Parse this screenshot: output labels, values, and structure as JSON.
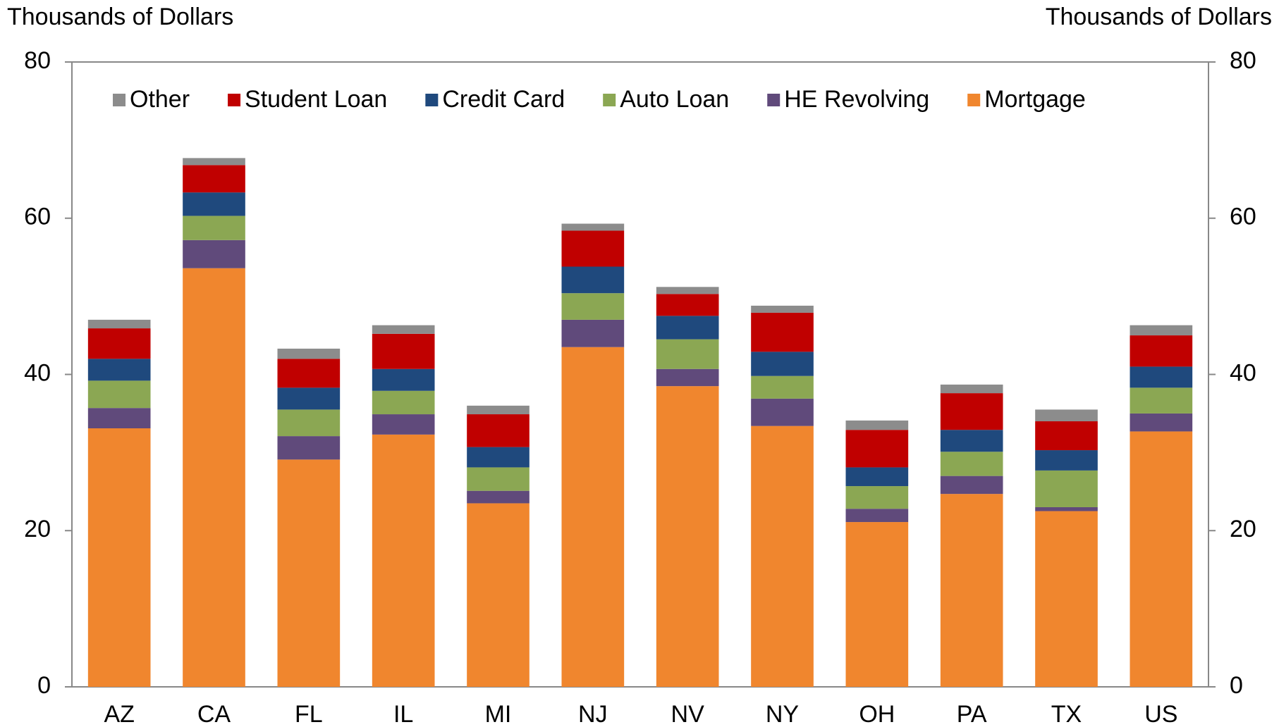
{
  "chart_data": {
    "type": "stacked_bar",
    "y_label": "Thousands of Dollars",
    "y2_label": "Thousands of Dollars",
    "categories": [
      "AZ",
      "CA",
      "FL",
      "IL",
      "MI",
      "NJ",
      "NV",
      "NY",
      "OH",
      "PA",
      "TX",
      "US"
    ],
    "series": [
      {
        "name": "Mortgage",
        "color": "#f0862e",
        "values": [
          33.1,
          53.6,
          29.1,
          32.3,
          23.5,
          43.5,
          38.5,
          33.4,
          21.1,
          24.7,
          22.5,
          32.7
        ]
      },
      {
        "name": "HE Revolving",
        "color": "#604a7b",
        "values": [
          2.6,
          3.6,
          3.0,
          2.6,
          1.6,
          3.5,
          2.2,
          3.5,
          1.7,
          2.3,
          0.5,
          2.3
        ]
      },
      {
        "name": "Auto Loan",
        "color": "#8ba753",
        "values": [
          3.5,
          3.1,
          3.4,
          3.0,
          3.0,
          3.4,
          3.8,
          2.9,
          2.9,
          3.1,
          4.7,
          3.3
        ]
      },
      {
        "name": "Credit Card",
        "color": "#1f497d",
        "values": [
          2.8,
          3.0,
          2.8,
          2.8,
          2.6,
          3.4,
          3.0,
          3.1,
          2.4,
          2.8,
          2.6,
          2.7
        ]
      },
      {
        "name": "Student Loan",
        "color": "#c00000",
        "values": [
          3.9,
          3.5,
          3.7,
          4.5,
          4.2,
          4.6,
          2.8,
          5.0,
          4.8,
          4.7,
          3.7,
          4.0
        ]
      },
      {
        "name": "Other",
        "color": "#8c8c8c",
        "values": [
          1.1,
          0.9,
          1.3,
          1.1,
          1.1,
          0.9,
          0.9,
          0.9,
          1.2,
          1.1,
          1.5,
          1.3
        ]
      }
    ],
    "ylim": [
      0,
      80
    ],
    "yticks": [
      0,
      20,
      40,
      60,
      80
    ],
    "y2lim": [
      0,
      80
    ],
    "y2ticks": [
      0,
      20,
      40,
      60,
      80
    ],
    "legend": "top"
  }
}
